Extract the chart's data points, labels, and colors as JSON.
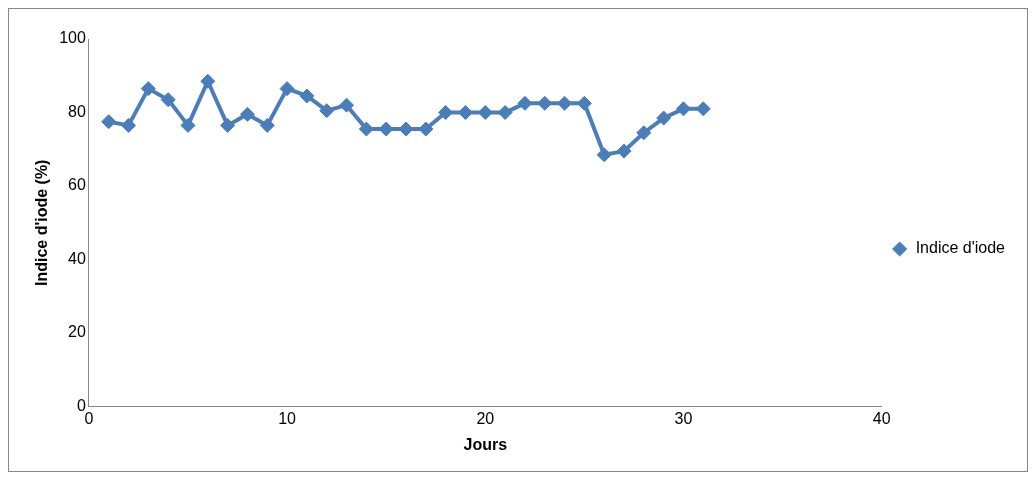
{
  "chart_data": {
    "type": "line",
    "xlabel": "Jours",
    "ylabel": "Indice d'iode (%)",
    "x": [
      1,
      2,
      3,
      4,
      5,
      6,
      7,
      8,
      9,
      10,
      11,
      12,
      13,
      14,
      15,
      16,
      17,
      18,
      19,
      20,
      21,
      22,
      23,
      24,
      25,
      26,
      27,
      28,
      29,
      30,
      31
    ],
    "series": [
      {
        "name": "Indice d'iode",
        "color": "#4a7ebb",
        "values": [
          77.5,
          76.5,
          86.5,
          83.5,
          76.5,
          88.5,
          76.5,
          79.5,
          76.5,
          86.5,
          84.5,
          80.5,
          82,
          75.5,
          75.5,
          75.5,
          75.5,
          80,
          80,
          80,
          80,
          82.5,
          82.5,
          82.5,
          82.5,
          68.5,
          69.5,
          74.5,
          78.5,
          81,
          81
        ]
      }
    ],
    "xlim": [
      0,
      40
    ],
    "xticks": [
      0,
      10,
      20,
      30,
      40
    ],
    "ylim": [
      0,
      100
    ],
    "yticks": [
      0,
      20,
      40,
      60,
      80,
      100
    ],
    "grid": false,
    "legend": "right",
    "marker": "diamond",
    "line_style": "solid"
  }
}
